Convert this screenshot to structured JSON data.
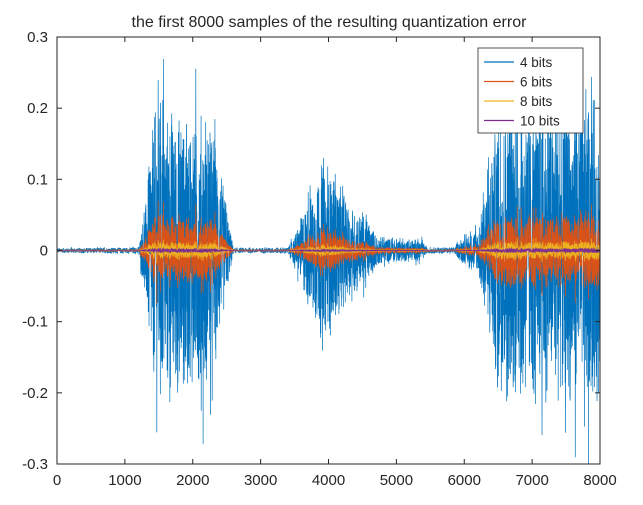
{
  "chart_data": {
    "type": "line",
    "title": "the first 8000 samples of the resulting quantization error",
    "xlabel": "",
    "ylabel": "",
    "xlim": [
      0,
      8000
    ],
    "ylim": [
      -0.3,
      0.3
    ],
    "xticks": [
      0,
      1000,
      2000,
      3000,
      4000,
      5000,
      6000,
      7000,
      8000
    ],
    "yticks": [
      -0.3,
      -0.2,
      -0.1,
      0,
      0.1,
      0.2,
      0.3
    ],
    "xtick_labels": [
      "0",
      "1000",
      "2000",
      "3000",
      "4000",
      "5000",
      "6000",
      "7000",
      "8000"
    ],
    "ytick_labels": [
      "-0.3",
      "-0.2",
      "-0.1",
      "0",
      "0.1",
      "0.2",
      "0.3"
    ],
    "grid": false,
    "legend_position": "top-right",
    "envelope_x": [
      0,
      1200,
      1300,
      1400,
      1500,
      1650,
      1800,
      1950,
      2100,
      2300,
      2450,
      2600,
      3400,
      3550,
      3700,
      3900,
      4100,
      4300,
      4500,
      4700,
      5000,
      5350,
      5450,
      5850,
      5950,
      6200,
      6500,
      6800,
      7100,
      7400,
      7700,
      8000
    ],
    "envelope_y": [
      0.003,
      0.004,
      0.06,
      0.17,
      0.19,
      0.18,
      0.19,
      0.17,
      0.18,
      0.17,
      0.08,
      0.003,
      0.004,
      0.03,
      0.07,
      0.11,
      0.1,
      0.06,
      0.05,
      0.02,
      0.015,
      0.015,
      0.004,
      0.004,
      0.015,
      0.03,
      0.19,
      0.2,
      0.19,
      0.19,
      0.2,
      0.2
    ],
    "series": [
      {
        "name": "4 bits",
        "color": "#0072BD",
        "amplitude": 1.0
      },
      {
        "name": "6 bits",
        "color": "#D95319",
        "amplitude": 0.25
      },
      {
        "name": "8 bits",
        "color": "#EDB120",
        "amplitude": 0.0625
      },
      {
        "name": "10 bits",
        "color": "#7E2F8E",
        "amplitude": 0.0156
      }
    ]
  }
}
